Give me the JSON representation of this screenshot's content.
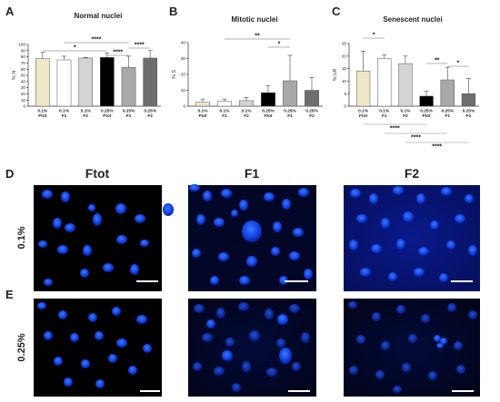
{
  "panels": {
    "A": "A",
    "B": "B",
    "C": "C",
    "D": "D",
    "E": "E"
  },
  "chart_data": [
    {
      "type": "bar",
      "title": "Normal nuclei",
      "ylabel": "% N",
      "ylim": [
        0,
        100
      ],
      "yticks": [
        "0",
        "10",
        "20",
        "30",
        "40",
        "50",
        "60",
        "70",
        "80",
        "90",
        "100"
      ],
      "categories": [
        [
          "0.1%",
          "Ftot"
        ],
        [
          "0.1%",
          "F1"
        ],
        [
          "0.1%",
          "F2"
        ],
        [
          "0.25%",
          "Ftot"
        ],
        [
          "0.25%",
          "F1"
        ],
        [
          "0.25%",
          "F2"
        ]
      ],
      "values": [
        77,
        75,
        78,
        79,
        63,
        78
      ],
      "errors": [
        10,
        6,
        1,
        7,
        18,
        12
      ],
      "colors": [
        "#f0e6c8",
        "#ffffff",
        "#d4d4d4",
        "#000000",
        "#a8a8a8",
        "#6e6e6e"
      ],
      "significance": [
        {
          "from": 0,
          "to": 3,
          "label": "*"
        },
        {
          "from": 1,
          "to": 4,
          "label": "****"
        },
        {
          "from": 3,
          "to": 4,
          "label": "****"
        },
        {
          "from": 4,
          "to": 5,
          "label": "****"
        }
      ]
    },
    {
      "type": "bar",
      "title": "Mitotic nuclei",
      "ylabel": "% S",
      "ylim": [
        0,
        40
      ],
      "yticks": [
        "0",
        "10",
        "20",
        "30",
        "40"
      ],
      "categories": [
        [
          "0.1%",
          "Ftot"
        ],
        [
          "0.1%",
          "F1"
        ],
        [
          "0.1%",
          "F2"
        ],
        [
          "0.25%",
          "Ftot"
        ],
        [
          "0.25%",
          "F1"
        ],
        [
          "0.25%",
          "F2"
        ]
      ],
      "values": [
        2.5,
        3,
        3.5,
        8.5,
        16,
        10
      ],
      "errors": [
        2,
        1.5,
        2,
        4.5,
        16,
        8
      ],
      "colors": [
        "#f0e6c8",
        "#ffffff",
        "#d4d4d4",
        "#000000",
        "#a8a8a8",
        "#6e6e6e"
      ],
      "significance": [
        {
          "from": 1,
          "to": 4,
          "label": "**"
        },
        {
          "from": 3,
          "to": 4,
          "label": "*"
        }
      ]
    },
    {
      "type": "bar",
      "title": "Senescent nuclei",
      "ylabel": "% LR",
      "ylim": [
        0,
        25
      ],
      "yticks": [
        "0",
        "5",
        "10",
        "15",
        "20",
        "25"
      ],
      "categories": [
        [
          "0.1%",
          "Ftot"
        ],
        [
          "0.1%",
          "F1"
        ],
        [
          "0.1%",
          "F2"
        ],
        [
          "0.25%",
          "Ftot"
        ],
        [
          "0.25%",
          "F1"
        ],
        [
          "0.25%",
          "F2"
        ]
      ],
      "values": [
        14,
        19,
        17,
        4,
        10.5,
        5
      ],
      "errors": [
        8,
        1.5,
        3,
        2,
        5,
        6
      ],
      "colors": [
        "#f0e6c8",
        "#ffffff",
        "#d4d4d4",
        "#000000",
        "#a8a8a8",
        "#6e6e6e"
      ],
      "significance": [
        {
          "from": 0,
          "to": 1,
          "label": "*"
        },
        {
          "from": 3,
          "to": 4,
          "label": "**"
        },
        {
          "from": 4,
          "to": 5,
          "label": "*"
        }
      ],
      "below_significance": [
        {
          "from": 0,
          "to": 3,
          "label": "****"
        },
        {
          "from": 1,
          "to": 4,
          "label": "****"
        },
        {
          "from": 2,
          "to": 5,
          "label": "****"
        }
      ]
    }
  ],
  "micrographs": {
    "columns": [
      "Ftot",
      "F1",
      "F2"
    ],
    "rows": [
      "0.1%",
      "0.25%"
    ]
  }
}
